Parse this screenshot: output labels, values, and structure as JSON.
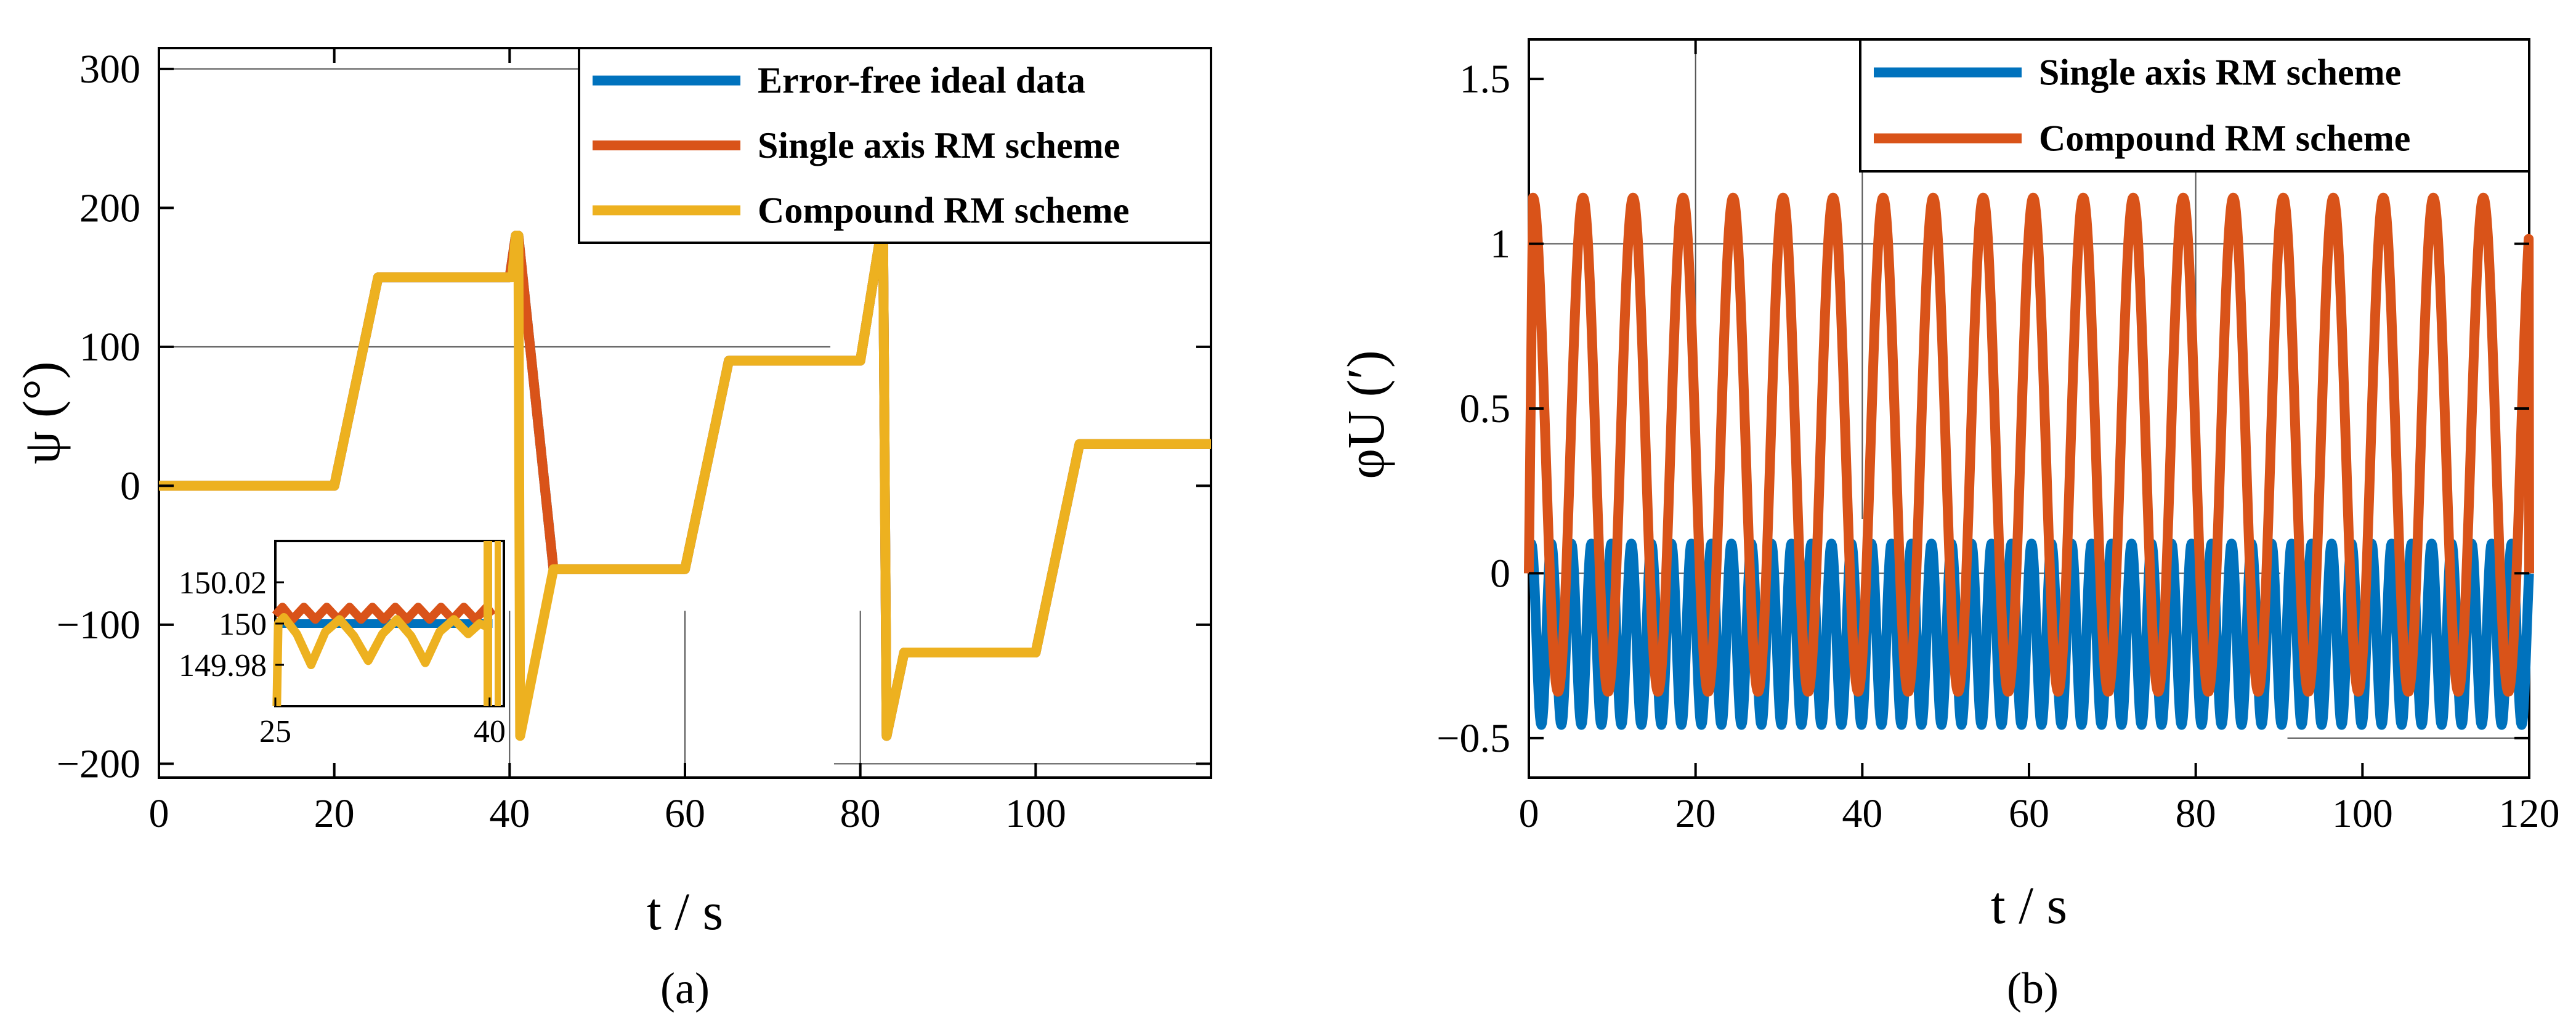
{
  "chart_data": [
    {
      "id": "a",
      "type": "line",
      "panel_label": "(a)",
      "xlabel": "t  / s",
      "ylabel": "ψ (°)",
      "xlim": [
        0,
        120
      ],
      "ylim": [
        -210,
        315
      ],
      "xticks": [
        0,
        20,
        40,
        60,
        80,
        100
      ],
      "xtick_labels": [
        "0",
        "20",
        "40",
        "60",
        "80",
        "100"
      ],
      "yticks": [
        -200,
        -100,
        0,
        100,
        200,
        300
      ],
      "ytick_labels": [
        "−200",
        "−100",
        "0",
        "100",
        "200",
        "300"
      ],
      "legend": [
        "Error-free ideal data",
        "Single axis RM scheme",
        "Compound RM scheme"
      ],
      "legend_position": "top-right",
      "series": [
        {
          "name": "Error-free ideal data",
          "color": "#0072BD",
          "x": [
            0,
            20,
            25,
            40,
            40.7,
            41,
            45,
            60,
            65,
            80,
            82.3,
            82.6,
            83,
            85,
            100,
            105,
            120
          ],
          "y": [
            0,
            0,
            150,
            150,
            180,
            180,
            -60,
            -60,
            90,
            90,
            180,
            180,
            -180,
            -120,
            -120,
            30,
            30
          ]
        },
        {
          "name": "Single axis RM scheme",
          "color": "#D95319",
          "x": [
            0,
            20,
            25,
            40,
            40.7,
            41,
            45,
            60,
            65,
            80,
            82.3,
            82.6,
            83,
            85,
            100,
            105,
            120
          ],
          "y": [
            0,
            0,
            150,
            150,
            180,
            180,
            -60,
            -60,
            90,
            90,
            180,
            180,
            -180,
            -120,
            -120,
            30,
            30
          ]
        },
        {
          "name": "Compound RM scheme",
          "color": "#EDB120",
          "x": [
            0,
            20,
            25,
            40,
            40.3,
            40.7,
            41,
            41.2,
            45,
            60,
            65,
            80,
            82.3,
            82.6,
            83,
            85,
            100,
            105,
            120
          ],
          "y": [
            0,
            0,
            150,
            150,
            150,
            180,
            180,
            -180,
            -60,
            -60,
            90,
            90,
            180,
            180,
            -180,
            -120,
            -120,
            30,
            30
          ]
        }
      ],
      "inset": {
        "xlim": [
          25,
          41
        ],
        "ylim": [
          149.96,
          150.04
        ],
        "xticks": [
          25,
          40
        ],
        "xtick_labels": [
          "25",
          "40"
        ],
        "yticks": [
          149.98,
          150,
          150.02
        ],
        "ytick_labels": [
          "149.98",
          "150",
          "150.02"
        ],
        "series": [
          {
            "name": "Error-free ideal data",
            "color": "#0072BD",
            "x": [
              25,
              40.2
            ],
            "y": [
              150,
              150
            ]
          },
          {
            "name": "Single axis RM scheme",
            "color": "#D95319",
            "x": [
              25,
              25.5,
              26.2,
              27,
              27.8,
              28.6,
              29.4,
              30.2,
              31,
              31.8,
              32.6,
              33.4,
              34.2,
              35,
              35.8,
              36.6,
              37.4,
              38.2,
              39,
              39.8,
              40.2
            ],
            "y": [
              150.004,
              150.008,
              150.002,
              150.008,
              150.002,
              150.008,
              150.002,
              150.008,
              150.002,
              150.008,
              150.002,
              150.008,
              150.002,
              150.008,
              150.002,
              150.008,
              150.002,
              150.008,
              150.002,
              150.008,
              150.004
            ]
          },
          {
            "name": "Compound RM scheme",
            "color": "#EDB120",
            "x": [
              25.1,
              25.2,
              25.6,
              26.5,
              27.5,
              28.5,
              29.5,
              30.5,
              31.5,
              32.5,
              33.5,
              34.5,
              35.5,
              36.5,
              37.5,
              38.5,
              39.3,
              40
            ],
            "y": [
              149.96,
              150.0,
              150.003,
              149.995,
              149.98,
              149.996,
              150.002,
              149.994,
              149.982,
              149.995,
              150.002,
              149.994,
              149.981,
              149.996,
              150.002,
              149.995,
              150.0,
              149.998
            ]
          }
        ]
      }
    },
    {
      "id": "b",
      "type": "line",
      "panel_label": "(b)",
      "xlabel": "t  / s",
      "ylabel": "φU (′)",
      "xlim": [
        0,
        120
      ],
      "ylim": [
        -0.62,
        1.62
      ],
      "xticks": [
        0,
        20,
        40,
        60,
        80,
        100,
        120
      ],
      "xtick_labels": [
        "0",
        "20",
        "40",
        "60",
        "80",
        "100",
        "120"
      ],
      "yticks": [
        -0.5,
        0,
        0.5,
        1,
        1.5
      ],
      "ytick_labels": [
        "−0.5",
        "0",
        "0.5",
        "1",
        "1.5"
      ],
      "legend": [
        "Single axis RM scheme",
        "Compound RM scheme"
      ],
      "legend_position": "top-right",
      "series": [
        {
          "name": "Single axis RM scheme",
          "color": "#0072BD",
          "period": 2.4,
          "max": 0.09,
          "min": -0.46,
          "t_start": 0.3,
          "t_end": 120
        },
        {
          "name": "Compound RM scheme",
          "color": "#D95319",
          "period": 6.0,
          "max": 1.14,
          "min": -0.36,
          "t_start": 0.5,
          "t_end": 120
        }
      ]
    }
  ]
}
